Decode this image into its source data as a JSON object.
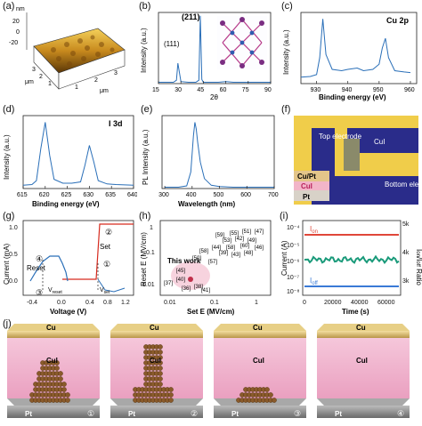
{
  "panels": {
    "a": {
      "label": "(a)",
      "zunit": "nm",
      "zticks": [
        "20",
        "0",
        "-20"
      ],
      "xunit": "μm",
      "yunit": "μm",
      "xticks": [
        "1",
        "2",
        "3"
      ],
      "yticks": [
        "1",
        "2",
        "3"
      ]
    },
    "b": {
      "label": "(b)",
      "ylabel": "Intensity (a.u.)",
      "xlabel": "2θ",
      "peak1": "(111)",
      "peak2": "(211)"
    },
    "c": {
      "label": "(c)",
      "title": "Cu 2p",
      "ylabel": "Intensity (a.u.)",
      "xlabel": "Binding energy (eV)"
    },
    "d": {
      "label": "(d)",
      "title": "I 3d",
      "ylabel": "Intensity (a.u.)",
      "xlabel": "Binding energy (eV)"
    },
    "e": {
      "label": "(e)",
      "ylabel": "PL Intensity (a.u.)",
      "xlabel": "Wavelength (nm)"
    },
    "f": {
      "label": "(f)",
      "top": "Top electrode",
      "cui": "CuI",
      "bottom": "Bottom electrode",
      "layer1": "Cu/Pt",
      "layer2": "CuI",
      "layer3": "Pt"
    },
    "g": {
      "label": "(g)",
      "ylabel": "Current (mA)",
      "xlabel": "Voltage (V)",
      "set": "Set",
      "reset": "Reset",
      "vreset": "V",
      "vreset_sub": "reset",
      "vset": "V",
      "vset_sub": "set",
      "s1": "①",
      "s2": "②",
      "s3": "③",
      "s4": "④"
    },
    "h": {
      "label": "(h)",
      "ylabel": "Reset E (MV/cm)",
      "xlabel": "Set E (MV/cm)",
      "thiswork": "This work"
    },
    "i": {
      "label": "(i)",
      "ylabel": "Current (A)",
      "ylabel2": "I",
      "xlabel": "Time (s)",
      "ion": "I",
      "ion_sub": "on",
      "ioff": "I",
      "ioff_sub": "off"
    },
    "j": {
      "label": "(j)",
      "cu": "Cu",
      "cui": "CuI",
      "pt": "Pt",
      "steps": [
        "①",
        "②",
        "③",
        "④"
      ]
    }
  },
  "chart_data": [
    {
      "type": "line",
      "panel": "b",
      "xlabel": "2θ",
      "ylabel": "Intensity (a.u.)",
      "x": [
        15,
        20,
        25,
        27,
        28,
        30,
        35,
        40,
        42,
        43,
        44,
        45,
        50,
        55,
        60,
        65,
        70,
        75,
        80,
        85,
        90
      ],
      "y": [
        2,
        2,
        2,
        5,
        30,
        3,
        2,
        2,
        5,
        100,
        6,
        2,
        2,
        2,
        3,
        2,
        2,
        2,
        2,
        2,
        2
      ],
      "xticks": [
        "15",
        "30",
        "45",
        "60",
        "75",
        "90"
      ],
      "xlim": [
        15,
        90
      ]
    },
    {
      "type": "line",
      "panel": "c",
      "xlabel": "Binding energy (eV)",
      "ylabel": "Intensity (a.u.)",
      "x": [
        925,
        928,
        930,
        931,
        932,
        933,
        935,
        938,
        940,
        943,
        945,
        948,
        950,
        951,
        952,
        953,
        955,
        958,
        960
      ],
      "y": [
        10,
        11,
        14,
        40,
        100,
        45,
        22,
        20,
        22,
        24,
        20,
        22,
        30,
        55,
        70,
        40,
        20,
        18,
        17
      ],
      "xticks": [
        "930",
        "940",
        "950",
        "960"
      ],
      "xlim": [
        925,
        962
      ]
    },
    {
      "type": "line",
      "panel": "d",
      "xlabel": "Binding energy (eV)",
      "ylabel": "Intensity (a.u.)",
      "x": [
        615,
        617,
        618,
        619,
        620,
        621,
        622,
        624,
        626,
        628,
        629,
        630,
        631,
        632,
        634,
        636,
        640
      ],
      "y": [
        5,
        6,
        12,
        60,
        100,
        50,
        14,
        8,
        8,
        10,
        35,
        65,
        40,
        12,
        7,
        6,
        5
      ],
      "xticks": [
        "615",
        "620",
        "625",
        "630",
        "635",
        "640"
      ],
      "xlim": [
        615,
        640
      ]
    },
    {
      "type": "line",
      "panel": "e",
      "xlabel": "Wavelength (nm)",
      "ylabel": "PL Intensity (a.u.)",
      "x": [
        300,
        350,
        380,
        395,
        405,
        410,
        415,
        420,
        430,
        445,
        470,
        500,
        550,
        600,
        650,
        700
      ],
      "y": [
        2,
        2,
        4,
        25,
        80,
        100,
        90,
        70,
        40,
        15,
        5,
        3,
        2,
        2,
        2,
        2
      ],
      "xticks": [
        "300",
        "400",
        "500",
        "600",
        "700"
      ],
      "xlim": [
        290,
        700
      ]
    },
    {
      "type": "scatter",
      "panel": "h",
      "xlabel": "Set E (MV/cm)",
      "ylabel": "Reset E (MV/cm)",
      "refs": [
        "[59]",
        "[55]",
        "[51]",
        "[47]",
        "[53]",
        "[42]",
        "[49]",
        "[44]",
        "[58]",
        "[60]",
        "[46]",
        "[39]",
        "[43]",
        "[48]",
        "[50]",
        "[45]",
        "[40]",
        "[37]",
        "[38]",
        "[36]",
        "[41]",
        "[57]",
        "[58]"
      ],
      "xticks": [
        "0.01",
        "0.1",
        "1"
      ],
      "yticks": [
        "0.01",
        "0.1",
        "1"
      ]
    },
    {
      "type": "scatter",
      "panel": "i",
      "xlabel": "Time (s)",
      "ylabel": "Current (A)",
      "xticks": [
        "0",
        "20000",
        "40000",
        "60000"
      ],
      "yticks": [
        "10⁻⁸",
        "10⁻⁷",
        "10⁻⁶",
        "10⁻⁵",
        "10⁻⁴"
      ],
      "y2ticks": [
        "3k",
        "4k",
        "5k"
      ],
      "series": [
        {
          "name": "Ion",
          "value": 4e-05
        },
        {
          "name": "Ioff",
          "value": 2e-08
        }
      ]
    }
  ]
}
